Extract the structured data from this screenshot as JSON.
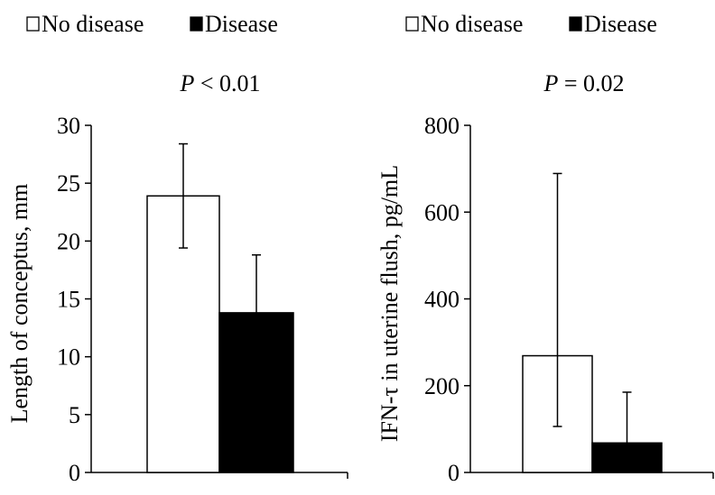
{
  "chart_data": [
    {
      "type": "bar",
      "title_prefix": "P",
      "title_rest": " < 0.01",
      "ylabel": "Length of conceptus, mm",
      "ylim": [
        0,
        30
      ],
      "yticks": [
        "0",
        "5",
        "10",
        "15",
        "20",
        "25",
        "30"
      ],
      "legend": {
        "placement": "top",
        "entries": [
          "No disease",
          "Disease"
        ]
      },
      "categories": [
        "No disease",
        "Disease"
      ],
      "values": [
        23.9,
        13.8
      ],
      "error_upper": [
        28.4,
        18.8
      ],
      "error_lower": [
        19.4,
        null
      ],
      "colors": [
        "#ffffff",
        "#000000"
      ],
      "grid": false
    },
    {
      "type": "bar",
      "title_prefix": "P",
      "title_rest": " = 0.02",
      "ylabel": "IFN-τ in uterine flush, pg/mL",
      "ylim": [
        0,
        800
      ],
      "yticks": [
        "0",
        "200",
        "400",
        "600",
        "800"
      ],
      "legend": {
        "placement": "top",
        "entries": [
          "No disease",
          "Disease"
        ]
      },
      "categories": [
        "No disease",
        "Disease"
      ],
      "values": [
        269,
        68
      ],
      "error_upper": [
        689,
        185
      ],
      "error_lower": [
        106,
        null
      ],
      "colors": [
        "#ffffff",
        "#000000"
      ],
      "grid": false
    }
  ]
}
